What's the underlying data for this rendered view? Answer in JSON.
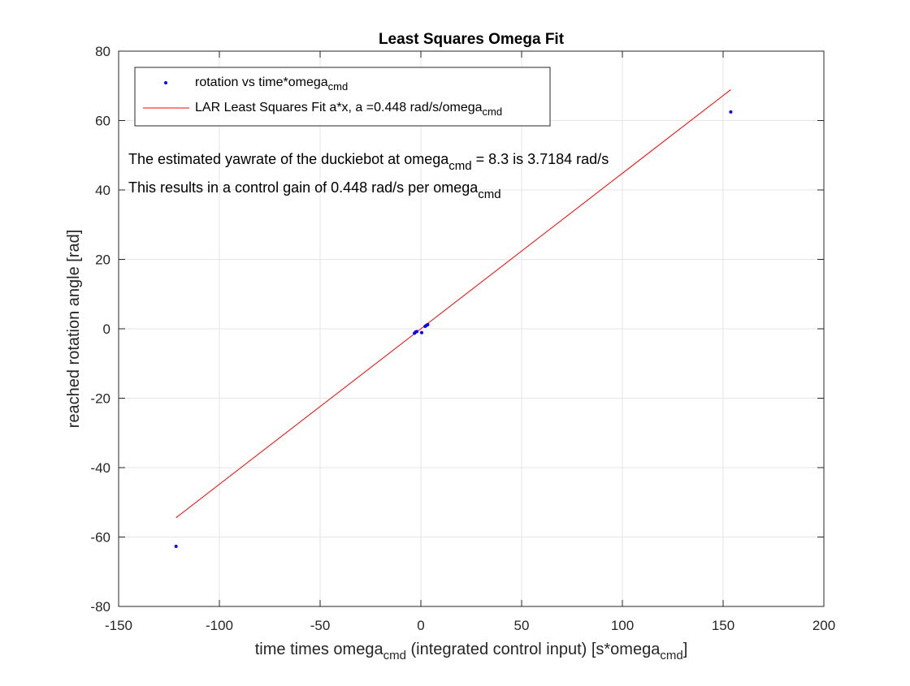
{
  "chart_data": {
    "type": "scatter",
    "title": "Least Squares Omega Fit",
    "xlabel": {
      "main": "time times omega",
      "sub": "cmd",
      "rest": " (integrated control input) [s*omega",
      "sub2": "cmd",
      "end": "]"
    },
    "ylabel": "reached rotation angle [rad]",
    "xlim": [
      -150,
      200
    ],
    "ylim": [
      -80,
      80
    ],
    "xticks": [
      -150,
      -100,
      -50,
      0,
      50,
      100,
      150,
      200
    ],
    "yticks": [
      -80,
      -60,
      -40,
      -20,
      0,
      20,
      40,
      60,
      80
    ],
    "grid": true,
    "series": [
      {
        "name": "rotation vs time*omega_cmd",
        "kind": "scatter",
        "color": "#0000ff",
        "points": [
          [
            -121.5,
            -62.7
          ],
          [
            -3.2,
            -1.3
          ],
          [
            -2.6,
            -0.9
          ],
          [
            -2.0,
            -0.8
          ],
          [
            0.4,
            -1.1
          ],
          [
            2.1,
            0.7
          ],
          [
            2.8,
            1.0
          ],
          [
            3.4,
            1.2
          ],
          [
            153.8,
            62.5
          ]
        ]
      },
      {
        "name": "LAR Least Squares Fit a*x",
        "kind": "line",
        "color": "#ff0000",
        "slope": 0.448,
        "x_range": [
          -121.5,
          153.8
        ]
      }
    ],
    "legend": {
      "position": "top-left",
      "entries": [
        {
          "text": "rotation vs time*omega",
          "sub": "cmd"
        },
        {
          "text": "LAR Least Squares Fit a*x, a =0.448 rad/s/omega",
          "sub": "cmd"
        }
      ]
    },
    "annotations": [
      {
        "before": "The estimated yawrate of the duckiebot at omega",
        "sub": "cmd",
        "after": " = 8.3 is 3.7184 rad/s"
      },
      {
        "before": "This results in a control gain of 0.448 rad/s per omega",
        "sub": "cmd",
        "after": ""
      }
    ]
  }
}
